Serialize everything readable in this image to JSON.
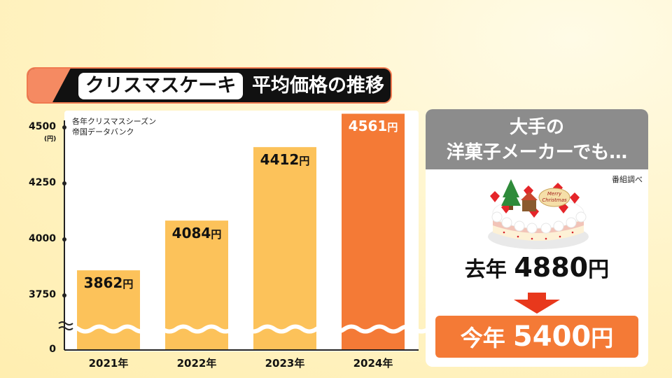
{
  "header": {
    "title_main": "クリスマスケーキ",
    "title_rest": "平均価格の推移"
  },
  "source_lines": [
    "各年クリスマスシーズン",
    "帝国データバンク"
  ],
  "chart_data": {
    "type": "bar",
    "title": "クリスマスケーキ 平均価格の推移",
    "categories": [
      "2021年",
      "2022年",
      "2023年",
      "2024年"
    ],
    "values": [
      3862,
      4084,
      4412,
      4561
    ],
    "value_labels": [
      "3862",
      "4084",
      "4412",
      "4561"
    ],
    "value_unit": "円",
    "ylabel_unit": "(円)",
    "yticks": [
      {
        "value": 0,
        "label": "0"
      },
      {
        "value": 3750,
        "label": "3750"
      },
      {
        "value": 4000,
        "label": "4000"
      },
      {
        "value": 4250,
        "label": "4250"
      },
      {
        "value": 4500,
        "label": "4500"
      }
    ],
    "ylim": [
      3750,
      4500
    ],
    "axis_break": true,
    "grid": false,
    "highlight_index": 3,
    "colors": {
      "bar": "#fcc25a",
      "highlight": "#f47a36",
      "axis": "#222222"
    }
  },
  "right_panel": {
    "heading_line1": "大手の",
    "heading_line2": "洋菓子メーカーでも…",
    "credit": "番組調べ",
    "last_year_label": "去年",
    "last_year_price": "4880",
    "this_year_label": "今年",
    "this_year_price": "5400",
    "unit": "円",
    "icon": "christmas-cake-icon",
    "arrow_icon": "down-arrow-icon",
    "colors": {
      "heading_bg": "#8c8c8c",
      "this_year_bg": "#f47a36",
      "arrow": "#e8381c"
    }
  }
}
